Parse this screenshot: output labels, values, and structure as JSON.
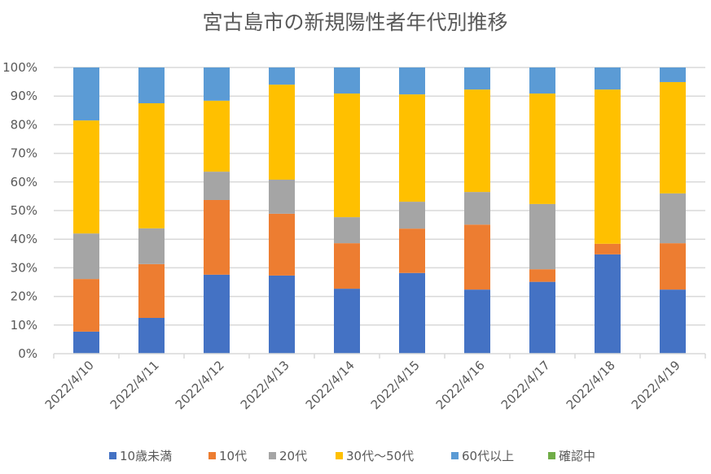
{
  "chart_data": {
    "type": "bar",
    "stacked": "percent",
    "title": "宮古島市の新規陽性者年代別推移",
    "xlabel": "",
    "ylabel": "",
    "ylim": [
      0,
      100
    ],
    "yticks": [
      "0%",
      "10%",
      "20%",
      "30%",
      "40%",
      "50%",
      "60%",
      "70%",
      "80%",
      "90%",
      "100%"
    ],
    "grid": true,
    "legend_position": "bottom",
    "categories": [
      "2022/4/10",
      "2022/4/11",
      "2022/4/12",
      "2022/4/13",
      "2022/4/14",
      "2022/4/15",
      "2022/4/16",
      "2022/4/17",
      "2022/4/18",
      "2022/4/19"
    ],
    "series": [
      {
        "name": "10歳未満",
        "color": "#4472c4",
        "values": [
          7.7,
          12.5,
          27.6,
          27.3,
          22.7,
          28.2,
          22.4,
          25.1,
          34.7,
          22.4
        ]
      },
      {
        "name": "10代",
        "color": "#ed7d31",
        "values": [
          18.4,
          18.8,
          26.1,
          21.6,
          15.9,
          15.5,
          22.7,
          4.4,
          3.7,
          16.2
        ]
      },
      {
        "name": "20代",
        "color": "#a5a5a5",
        "values": [
          15.9,
          12.5,
          9.9,
          11.9,
          9.1,
          9.4,
          11.4,
          22.8,
          0,
          17.4
        ]
      },
      {
        "name": "30代～50代",
        "color": "#ffc000",
        "values": [
          39.5,
          43.7,
          24.8,
          33.2,
          43.2,
          37.5,
          35.8,
          38.6,
          53.9,
          38.9
        ]
      },
      {
        "name": "60代以上",
        "color": "#5b9bd5",
        "values": [
          18.5,
          12.5,
          11.6,
          6.0,
          9.1,
          9.4,
          7.7,
          9.1,
          7.7,
          5.1
        ]
      },
      {
        "name": "確認中",
        "color": "#70ad47",
        "values": [
          0,
          0,
          0,
          0,
          0,
          0,
          0,
          0,
          0,
          0
        ]
      }
    ]
  }
}
